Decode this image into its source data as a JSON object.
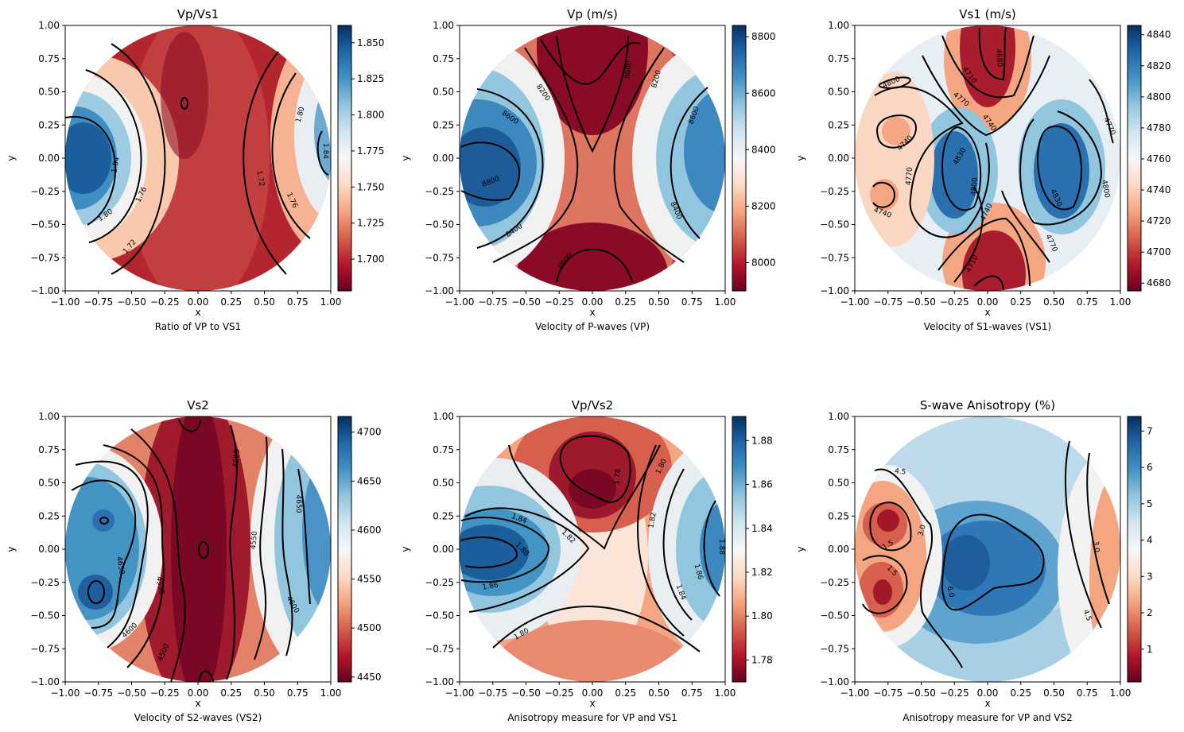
{
  "colors": {
    "colormap": "RdBu",
    "cmap_low": "#67001f",
    "cmap_mid": "#f7f7f7",
    "cmap_high": "#053061",
    "contour_line": "#000000"
  },
  "chart_data": [
    {
      "type": "heatmap",
      "title": "Vp/Vs1",
      "caption": "Ratio of VP to VS1",
      "xlabel": "x",
      "ylabel": "y",
      "xlim": [
        -1.0,
        1.0
      ],
      "ylim": [
        -1.0,
        1.0
      ],
      "xticks": [
        "−1.00",
        "−0.75",
        "−0.50",
        "−0.25",
        "0.00",
        "0.25",
        "0.50",
        "0.75",
        "1.00"
      ],
      "yticks": [
        "1.00",
        "0.75",
        "0.50",
        "0.25",
        "0.00",
        "−0.25",
        "−0.50",
        "−0.75",
        "−1.00"
      ],
      "colorbar": {
        "min": 1.678,
        "max": 1.862,
        "ticks": [
          "1.700",
          "1.725",
          "1.750",
          "1.775",
          "1.800",
          "1.825",
          "1.850"
        ],
        "tick_values": [
          1.7,
          1.725,
          1.75,
          1.775,
          1.8,
          1.825,
          1.85
        ]
      },
      "contour_labels": [
        "1.84",
        "1.80",
        "1.76",
        "1.72",
        "1.72",
        "1.76",
        "1.80",
        "1.84"
      ]
    },
    {
      "type": "heatmap",
      "title": "Vp (m/s)",
      "caption": "Velocity of P-waves (VP)",
      "xlabel": "x",
      "ylabel": "y",
      "xlim": [
        -1.0,
        1.0
      ],
      "ylim": [
        -1.0,
        1.0
      ],
      "xticks": [
        "−1.00",
        "−0.75",
        "−0.50",
        "−0.25",
        "0.00",
        "0.25",
        "0.50",
        "0.75",
        "1.00"
      ],
      "yticks": [
        "1.00",
        "0.75",
        "0.50",
        "0.25",
        "0.00",
        "−0.25",
        "−0.50",
        "−0.75",
        "−1.00"
      ],
      "colorbar": {
        "min": 7900,
        "max": 8840,
        "ticks": [
          "8000",
          "8200",
          "8400",
          "8600",
          "8800"
        ],
        "tick_values": [
          8000,
          8200,
          8400,
          8600,
          8800
        ]
      },
      "contour_labels": [
        "8200",
        "8000",
        "8200",
        "8600",
        "8600",
        "8800",
        "8400",
        "8400",
        "8000"
      ]
    },
    {
      "type": "heatmap",
      "title": "Vs1 (m/s)",
      "caption": "Velocity of S1-waves (VS1)",
      "xlabel": "x",
      "ylabel": "y",
      "xlim": [
        -1.0,
        1.0
      ],
      "ylim": [
        -1.0,
        1.0
      ],
      "xticks": [
        "−1.00",
        "−0.75",
        "−0.50",
        "−0.25",
        "0.00",
        "0.25",
        "0.50",
        "0.75",
        "1.00"
      ],
      "yticks": [
        "1.00",
        "0.75",
        "0.50",
        "0.25",
        "0.00",
        "−0.25",
        "−0.50",
        "−0.75",
        "−1.00"
      ],
      "colorbar": {
        "min": 4675,
        "max": 4846,
        "ticks": [
          "4680",
          "4700",
          "4720",
          "4740",
          "4760",
          "4780",
          "4800",
          "4820",
          "4840"
        ],
        "tick_values": [
          4680,
          4700,
          4720,
          4740,
          4760,
          4780,
          4800,
          4820,
          4840
        ]
      },
      "contour_labels": [
        "4680",
        "4710",
        "4800",
        "4770",
        "4740",
        "4770",
        "4740",
        "4830",
        "4770",
        "4800",
        "4830",
        "4800",
        "4740",
        "4740",
        "4770",
        "4710"
      ]
    },
    {
      "type": "heatmap",
      "title": "Vs2",
      "caption": "Velocity of S2-waves (VS2)",
      "xlabel": "x",
      "ylabel": "y",
      "xlim": [
        -1.0,
        1.0
      ],
      "ylim": [
        -1.0,
        1.0
      ],
      "xticks": [
        "−1.00",
        "−0.75",
        "−0.50",
        "−0.25",
        "0.00",
        "0.25",
        "0.50",
        "0.75",
        "1.00"
      ],
      "yticks": [
        "1.00",
        "0.75",
        "0.50",
        "0.25",
        "0.00",
        "−0.25",
        "−0.50",
        "−0.75",
        "−1.00"
      ],
      "colorbar": {
        "min": 4445,
        "max": 4716,
        "ticks": [
          "4450",
          "4500",
          "4550",
          "4600",
          "4650",
          "4700"
        ],
        "tick_values": [
          4450,
          4500,
          4550,
          4600,
          4650,
          4700
        ]
      },
      "contour_labels": [
        "4500",
        "4650",
        "4550",
        "4650",
        "4550",
        "4600",
        "4600",
        "4500"
      ]
    },
    {
      "type": "heatmap",
      "title": "Vp/Vs2",
      "caption": "Anisotropy measure for VP and VS1",
      "xlabel": "x",
      "ylabel": "y",
      "xlim": [
        -1.0,
        1.0
      ],
      "ylim": [
        -1.0,
        1.0
      ],
      "xticks": [
        "−1.00",
        "−0.75",
        "−0.50",
        "−0.25",
        "0.00",
        "0.25",
        "0.50",
        "0.75",
        "1.00"
      ],
      "yticks": [
        "1.00",
        "0.75",
        "0.50",
        "0.25",
        "0.00",
        "−0.25",
        "−0.50",
        "−0.75",
        "−1.00"
      ],
      "colorbar": {
        "min": 1.77,
        "max": 1.891,
        "ticks": [
          "1.78",
          "1.80",
          "1.82",
          "1.84",
          "1.86",
          "1.88"
        ],
        "tick_values": [
          1.78,
          1.8,
          1.82,
          1.84,
          1.86,
          1.88
        ]
      },
      "contour_labels": [
        "1.78",
        "1.80",
        "1.84",
        "1.82",
        "1.88",
        "1.86",
        "1.82",
        "1.88",
        "1.86",
        "1.84",
        "1.80"
      ]
    },
    {
      "type": "heatmap",
      "title": "S-wave Anisotropy (%)",
      "caption": "Anisotropy measure for VP and VS2",
      "xlabel": "x",
      "ylabel": "y",
      "xlim": [
        -1.0,
        1.0
      ],
      "ylim": [
        -1.0,
        1.0
      ],
      "xticks": [
        "−1.00",
        "−0.75",
        "−0.50",
        "−0.25",
        "0.00",
        "0.25",
        "0.50",
        "0.75",
        "1.00"
      ],
      "yticks": [
        "1.00",
        "0.75",
        "0.50",
        "0.25",
        "0.00",
        "−0.25",
        "−0.50",
        "−0.75",
        "−1.00"
      ],
      "colorbar": {
        "min": 0.1,
        "max": 7.4,
        "ticks": [
          "1",
          "2",
          "3",
          "4",
          "5",
          "6",
          "7"
        ],
        "tick_values": [
          1,
          2,
          3,
          4,
          5,
          6,
          7
        ]
      },
      "contour_labels": [
        "4.5",
        "1.5",
        "3.0",
        "1.5",
        "6.0",
        "3.0",
        "4.5"
      ]
    }
  ]
}
